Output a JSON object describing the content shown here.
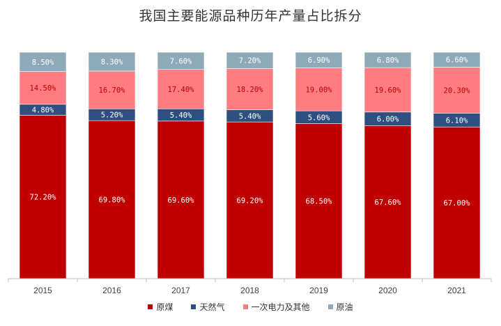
{
  "chart_data": {
    "type": "bar",
    "stacked": true,
    "title": "我国主要能源品种历年产量占比拆分",
    "xlabel": "",
    "ylabel": "",
    "ylim": [
      0,
      100
    ],
    "grid": false,
    "legend_position": "bottom",
    "categories": [
      "2015",
      "2016",
      "2017",
      "2018",
      "2019",
      "2020",
      "2021"
    ],
    "series": [
      {
        "name": "原煤",
        "color": "#c00000",
        "values": [
          72.2,
          69.8,
          69.6,
          69.2,
          68.5,
          67.6,
          67.0
        ],
        "labels": [
          "72.20%",
          "69.80%",
          "69.60%",
          "69.20%",
          "68.50%",
          "67.60%",
          "67.00%"
        ]
      },
      {
        "name": "天然气",
        "color": "#2e4f7f",
        "values": [
          4.8,
          5.2,
          5.4,
          5.4,
          5.6,
          6.0,
          6.1
        ],
        "labels": [
          "4.80%",
          "5.20%",
          "5.40%",
          "5.40%",
          "5.60%",
          "6.00%",
          "6.10%"
        ]
      },
      {
        "name": "一次电力及其他",
        "color": "#ff7c80",
        "values": [
          14.5,
          16.7,
          17.4,
          18.2,
          19.0,
          19.6,
          20.3
        ],
        "labels": [
          "14.50%",
          "16.70%",
          "17.40%",
          "18.20%",
          "19.00%",
          "19.60%",
          "20.30%"
        ]
      },
      {
        "name": "原油",
        "color": "#8eaab9",
        "values": [
          8.5,
          8.3,
          7.6,
          7.2,
          6.9,
          6.8,
          6.6
        ],
        "labels": [
          "8.50%",
          "8.30%",
          "7.60%",
          "7.20%",
          "6.90%",
          "6.80%",
          "6.60%"
        ]
      }
    ]
  }
}
